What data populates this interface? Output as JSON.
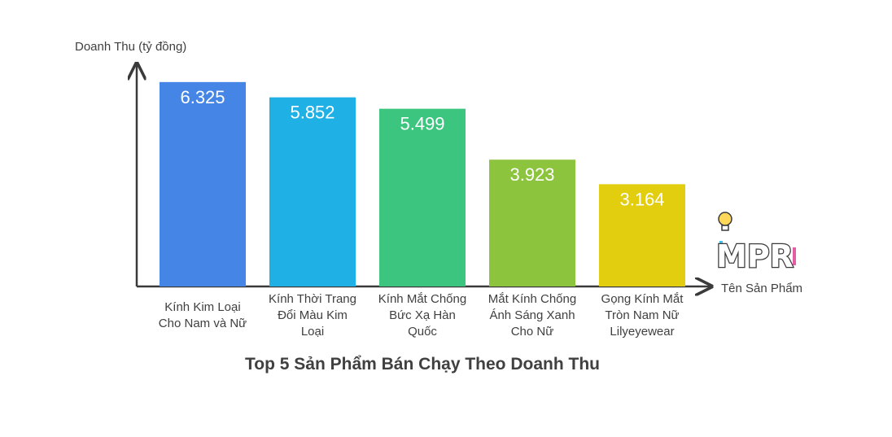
{
  "chart_data": {
    "type": "bar",
    "title": "Top 5 Sản Phẩm Bán Chạy Theo Doanh Thu",
    "ylabel": "Doanh Thu (tỷ đồng)",
    "xlabel": "Tên Sản Phẩm",
    "categories": [
      [
        "Kính Kim Loại",
        "Cho Nam và Nữ"
      ],
      [
        "Kính Thời Trang",
        "Đổi Màu Kim",
        "Loại"
      ],
      [
        "Kính Mắt Chống",
        "Bức Xạ Hàn",
        "Quốc"
      ],
      [
        "Mắt Kính Chống",
        "Ánh Sáng Xanh",
        "Cho Nữ"
      ],
      [
        "Gọng Kính Mắt",
        "Tròn Nam Nữ",
        "Lilyeyewear"
      ]
    ],
    "values": [
      6.325,
      5.852,
      5.499,
      3.923,
      3.164
    ],
    "value_labels": [
      "6.325",
      "5.852",
      "5.499",
      "3.923",
      "3.164"
    ],
    "colors": [
      "#4585e6",
      "#1fb0e5",
      "#3cc57f",
      "#8dc43d",
      "#e2cd0f"
    ],
    "ylim": [
      0,
      6.9
    ],
    "grid": false,
    "legend": "none"
  },
  "logo": {
    "text": "MPR"
  }
}
